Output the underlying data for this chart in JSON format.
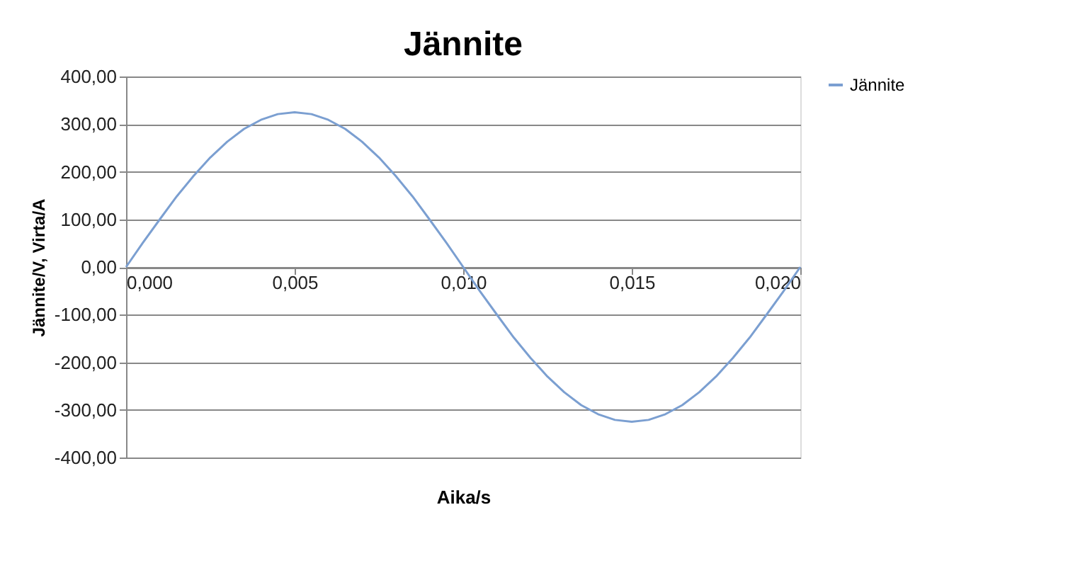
{
  "chart_data": {
    "type": "line",
    "title": "Jännite",
    "xlabel": "Aika/s",
    "ylabel": "Jännite/V, Virta/A",
    "x": [
      0,
      0.0005,
      0.001,
      0.0015,
      0.002,
      0.0025,
      0.003,
      0.0035,
      0.004,
      0.0045,
      0.005,
      0.0055,
      0.006,
      0.0065,
      0.007,
      0.0075,
      0.008,
      0.0085,
      0.009,
      0.0095,
      0.01,
      0.0105,
      0.011,
      0.0115,
      0.012,
      0.0125,
      0.013,
      0.0135,
      0.014,
      0.0145,
      0.015,
      0.0155,
      0.016,
      0.0165,
      0.017,
      0.0175,
      0.018,
      0.0185,
      0.019,
      0.0195,
      0.02
    ],
    "series": [
      {
        "name": "Jännite",
        "color": "#7b9fd1",
        "values": [
          0,
          51,
          100,
          148,
          191,
          230,
          263,
          290,
          309,
          321,
          325,
          321,
          309,
          290,
          263,
          230,
          191,
          148,
          100,
          51,
          0,
          -51,
          -100,
          -148,
          -191,
          -230,
          -263,
          -290,
          -309,
          -321,
          -325,
          -321,
          -309,
          -290,
          -263,
          -230,
          -191,
          -148,
          -100,
          -51,
          0
        ]
      }
    ],
    "xlim": [
      0,
      0.02
    ],
    "xticks": [
      {
        "value": 0,
        "label": "0,000"
      },
      {
        "value": 0.005,
        "label": "0,005"
      },
      {
        "value": 0.01,
        "label": "0,010"
      },
      {
        "value": 0.015,
        "label": "0,015"
      },
      {
        "value": 0.02,
        "label": "0,020"
      }
    ],
    "ylim": [
      -400,
      400
    ],
    "yticks": [
      {
        "value": -400,
        "label": "-400,00"
      },
      {
        "value": -300,
        "label": "-300,00"
      },
      {
        "value": -200,
        "label": "-200,00"
      },
      {
        "value": -100,
        "label": "-100,00"
      },
      {
        "value": 0,
        "label": "0,00"
      },
      {
        "value": 100,
        "label": "100,00"
      },
      {
        "value": 200,
        "label": "200,00"
      },
      {
        "value": 300,
        "label": "300,00"
      },
      {
        "value": 400,
        "label": "400,00"
      }
    ],
    "grid": "y",
    "legend": "right",
    "marker": "none",
    "line_style": "solid"
  }
}
